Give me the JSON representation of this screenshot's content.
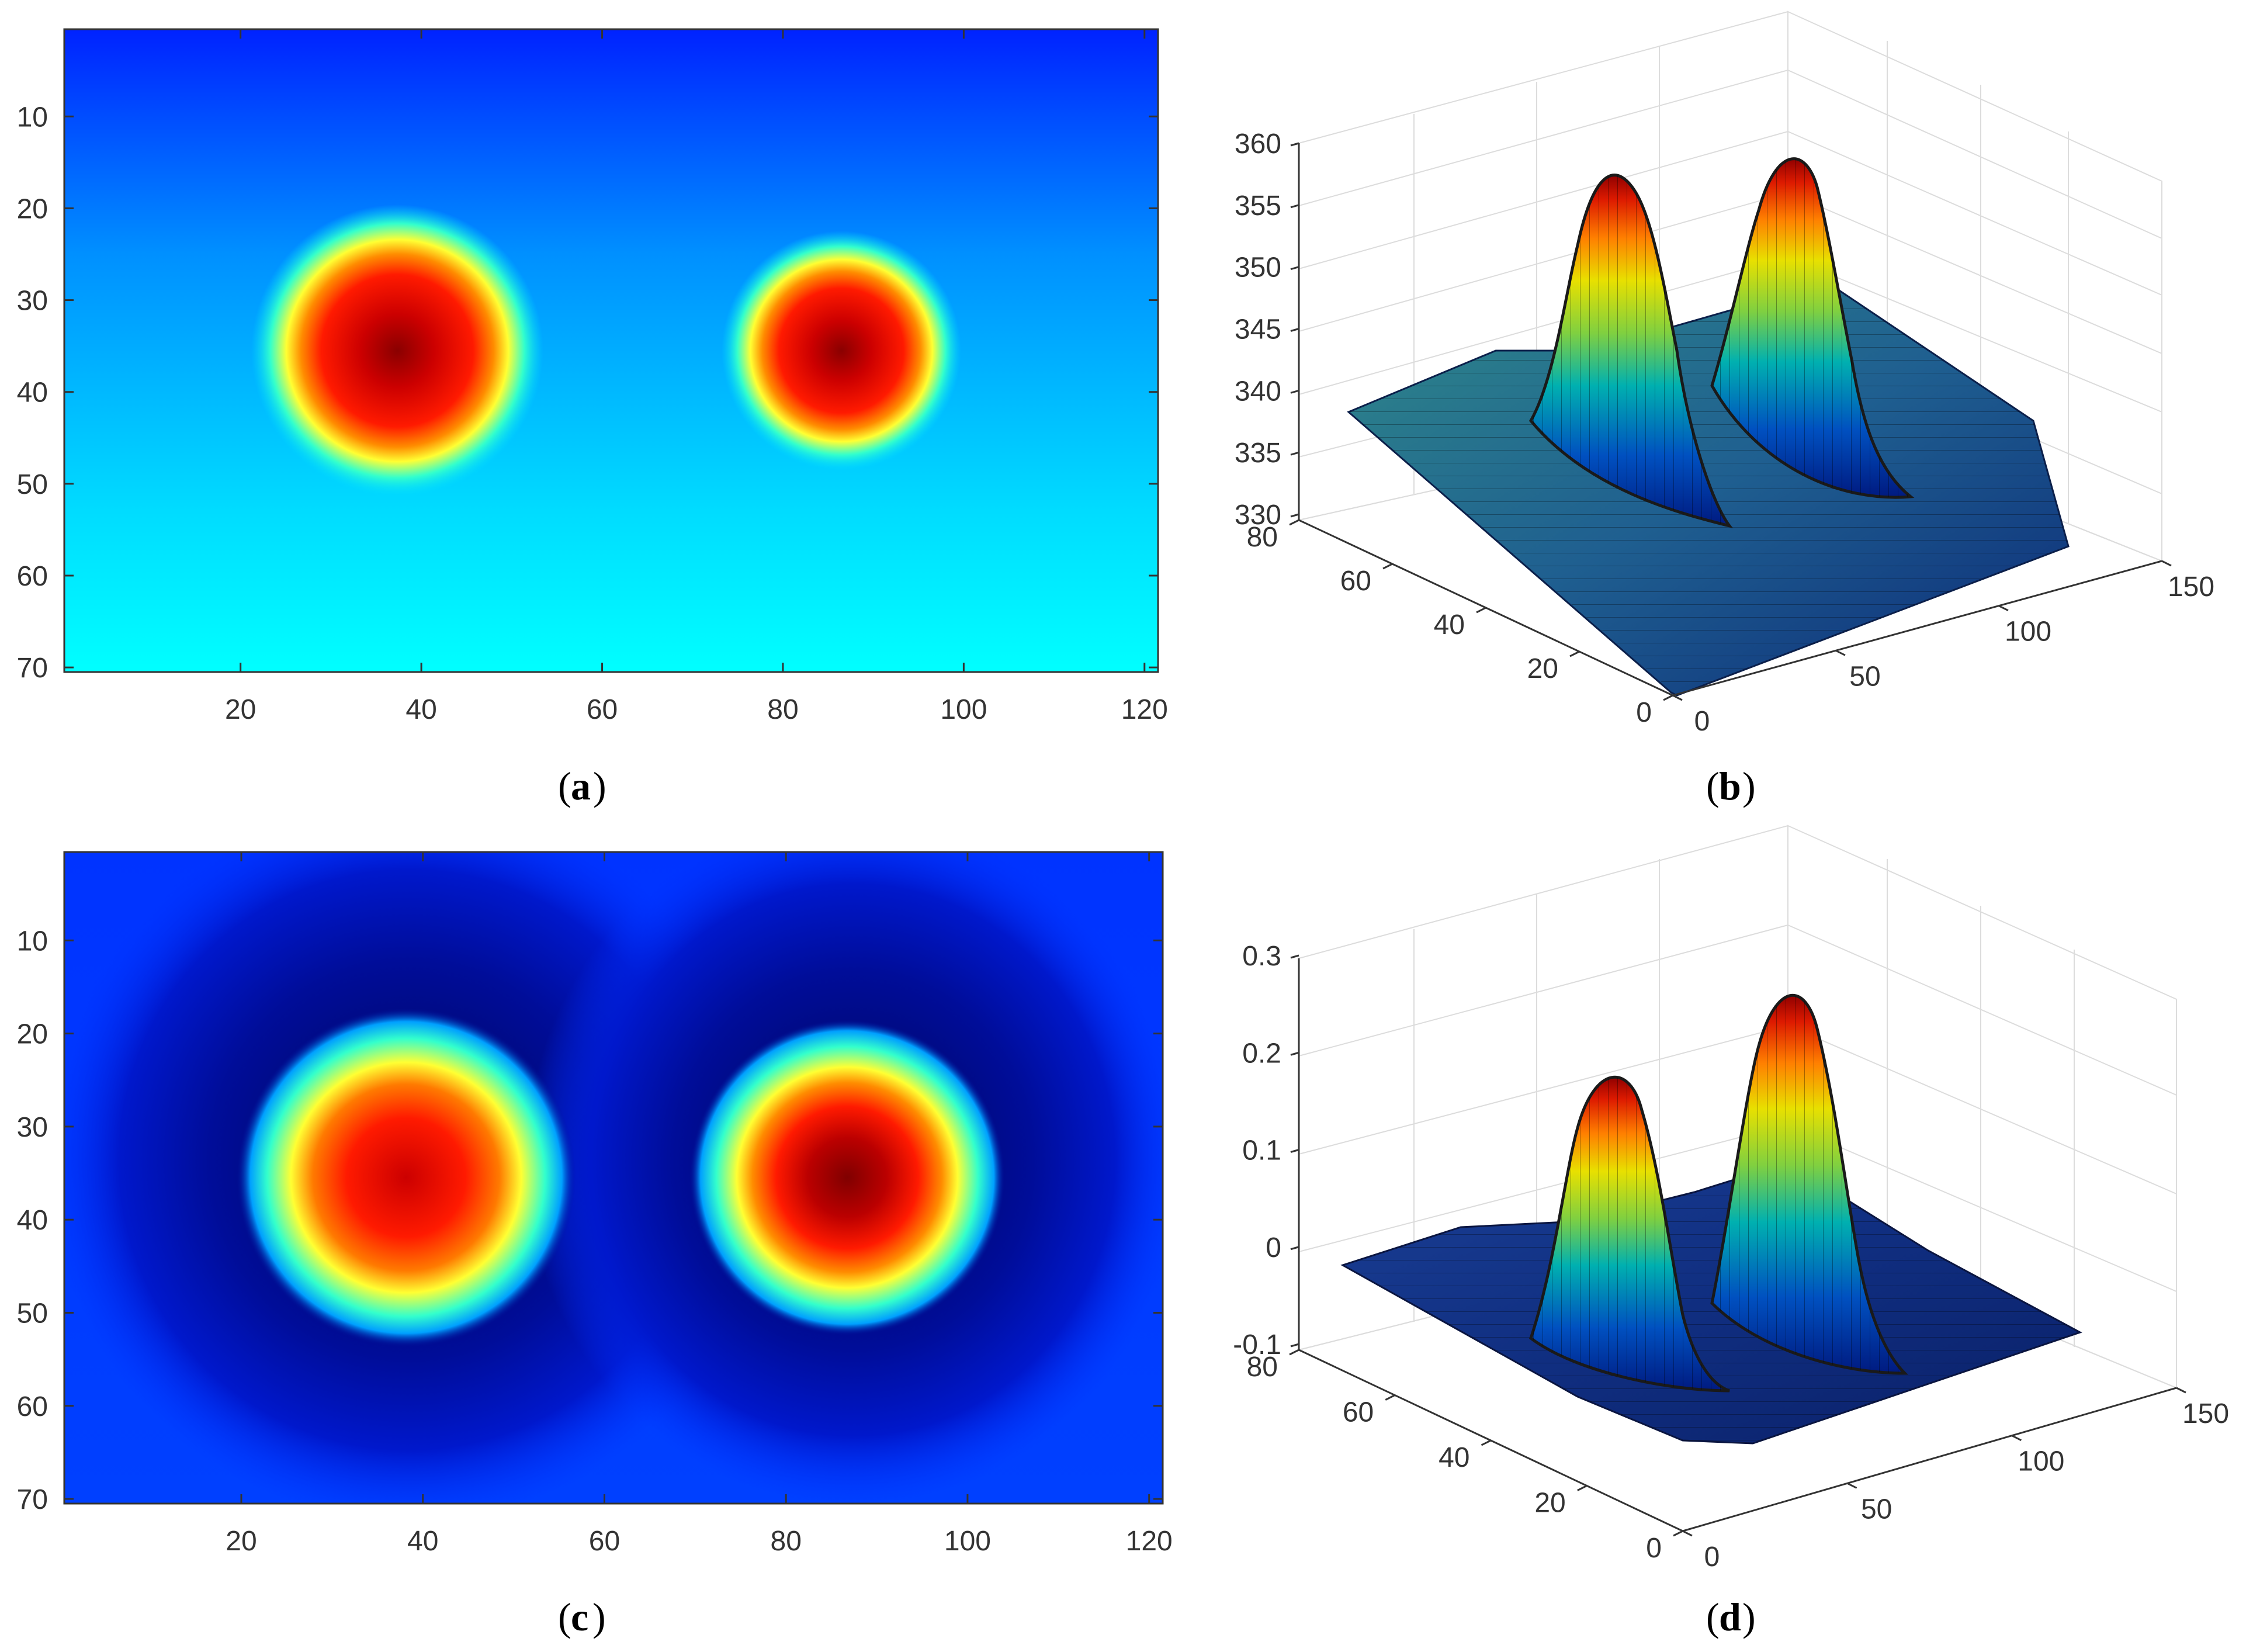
{
  "chart_data": [
    {
      "id": "a",
      "type": "heatmap",
      "caption_letter": "a",
      "x_ticks": [
        20,
        40,
        60,
        80,
        100,
        120
      ],
      "y_ticks": [
        10,
        20,
        30,
        40,
        50,
        60,
        70
      ],
      "xlim": [
        0.5,
        121.5
      ],
      "ylim": [
        0.5,
        70.5
      ],
      "colormap": "jet",
      "features": [
        {
          "cx": 37,
          "cy": 36,
          "radius": 11
        },
        {
          "cx": 87,
          "cy": 36,
          "radius": 9
        }
      ]
    },
    {
      "id": "b",
      "type": "surface3d",
      "caption_letter": "b",
      "z_ticks": [
        330,
        335,
        340,
        345,
        350,
        355,
        360
      ],
      "y_ticks": [
        0,
        20,
        40,
        60,
        80
      ],
      "x_ticks": [
        0,
        50,
        100,
        150
      ],
      "zlim": [
        330,
        360
      ],
      "peaks": [
        {
          "x": 37,
          "y": 36,
          "z": 356
        },
        {
          "x": 87,
          "y": 36,
          "z": 357
        }
      ],
      "colormap": "jet"
    },
    {
      "id": "c",
      "type": "heatmap",
      "caption_letter": "c",
      "x_ticks": [
        20,
        40,
        60,
        80,
        100,
        120
      ],
      "y_ticks": [
        10,
        20,
        30,
        40,
        50,
        60,
        70
      ],
      "xlim": [
        0.5,
        121.5
      ],
      "ylim": [
        0.5,
        70.5
      ],
      "colormap": "jet",
      "features": [
        {
          "cx": 38,
          "cy": 35,
          "radius": 12
        },
        {
          "cx": 87,
          "cy": 35,
          "radius": 11
        }
      ]
    },
    {
      "id": "d",
      "type": "surface3d",
      "caption_letter": "d",
      "z_ticks": [
        -0.1,
        0,
        0.1,
        0.2,
        0.3
      ],
      "y_ticks": [
        0,
        20,
        40,
        60,
        80
      ],
      "x_ticks": [
        0,
        50,
        100,
        150
      ],
      "zlim": [
        -0.1,
        0.3
      ],
      "peaks": [
        {
          "x": 37,
          "y": 36,
          "z": 0.19
        },
        {
          "x": 87,
          "y": 36,
          "z": 0.26
        }
      ],
      "colormap": "jet"
    }
  ],
  "colors": {
    "background": "#ffffff",
    "axis": "#333333",
    "grid": "#dcdcdc",
    "jet_dark_red": "#800000",
    "jet_red": "#ff1a00",
    "jet_yellow": "#ffff00",
    "jet_cyan": "#00ffff",
    "jet_blue": "#0022ff",
    "jet_dark_blue": "#000a80"
  }
}
